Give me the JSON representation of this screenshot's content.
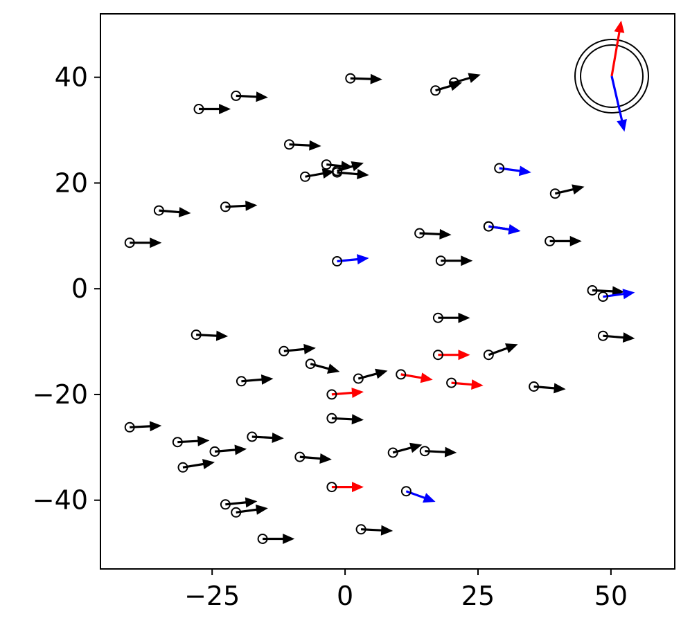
{
  "chart_data": {
    "type": "quiver",
    "title": "",
    "xlabel": "",
    "ylabel": "",
    "xlim": [
      -46,
      62
    ],
    "ylim": [
      -53,
      52
    ],
    "x_ticks": [
      -25,
      0,
      25,
      50
    ],
    "y_ticks": [
      -40,
      -20,
      0,
      20,
      40
    ],
    "x_tick_labels": [
      "−25",
      "0",
      "25",
      "50"
    ],
    "y_tick_labels": [
      "−40",
      "−20",
      "0",
      "20",
      "40"
    ],
    "grid": false,
    "legend": "none",
    "colors": {
      "default": "#000000",
      "red": "#ff0000",
      "blue": "#0000ff"
    },
    "vectors": [
      {
        "x": 1,
        "y": 39.8,
        "dx": 6,
        "dy": -0.2,
        "color": "black"
      },
      {
        "x": 17,
        "y": 37.5,
        "dx": 5,
        "dy": 1.5,
        "color": "black"
      },
      {
        "x": 20.5,
        "y": 39,
        "dx": 5,
        "dy": 1.5,
        "color": "black"
      },
      {
        "x": -20.5,
        "y": 36.5,
        "dx": 6,
        "dy": -0.3,
        "color": "black"
      },
      {
        "x": -27.5,
        "y": 34,
        "dx": 6,
        "dy": 0,
        "color": "black"
      },
      {
        "x": -10.5,
        "y": 27.3,
        "dx": 6,
        "dy": -0.3,
        "color": "black"
      },
      {
        "x": -3.5,
        "y": 23.5,
        "dx": 5,
        "dy": -0.5,
        "color": "black"
      },
      {
        "x": -1.5,
        "y": 22.3,
        "dx": 5,
        "dy": 1.5,
        "color": "black"
      },
      {
        "x": -1.5,
        "y": 22,
        "dx": 6,
        "dy": -0.5,
        "color": "black"
      },
      {
        "x": -7.5,
        "y": 21.2,
        "dx": 5.5,
        "dy": 1,
        "color": "black"
      },
      {
        "x": 29,
        "y": 22.8,
        "dx": 6,
        "dy": -0.8,
        "color": "blue"
      },
      {
        "x": 39.5,
        "y": 18,
        "dx": 5.5,
        "dy": 1.3,
        "color": "black"
      },
      {
        "x": -22.5,
        "y": 15.5,
        "dx": 6,
        "dy": 0.3,
        "color": "black"
      },
      {
        "x": -35,
        "y": 14.8,
        "dx": 6,
        "dy": -0.5,
        "color": "black"
      },
      {
        "x": 14,
        "y": 10.5,
        "dx": 6,
        "dy": -0.3,
        "color": "black"
      },
      {
        "x": 27,
        "y": 11.8,
        "dx": 6,
        "dy": -0.9,
        "color": "black"
      },
      {
        "x": 27,
        "y": 11.8,
        "dx": 6,
        "dy": -0.9,
        "color": "blue"
      },
      {
        "x": 38.5,
        "y": 9,
        "dx": 6,
        "dy": 0,
        "color": "black"
      },
      {
        "x": -40.5,
        "y": 8.7,
        "dx": 6,
        "dy": 0,
        "color": "black"
      },
      {
        "x": -1.5,
        "y": 5.2,
        "dx": 6,
        "dy": 0.6,
        "color": "blue"
      },
      {
        "x": 18,
        "y": 5.3,
        "dx": 6,
        "dy": 0,
        "color": "black"
      },
      {
        "x": 46.5,
        "y": -0.3,
        "dx": 6,
        "dy": -0.3,
        "color": "black"
      },
      {
        "x": 48.5,
        "y": -1.5,
        "dx": 6,
        "dy": 0.8,
        "color": "blue"
      },
      {
        "x": 17.5,
        "y": -5.5,
        "dx": 6,
        "dy": 0,
        "color": "black"
      },
      {
        "x": -28,
        "y": -8.7,
        "dx": 6,
        "dy": -0.3,
        "color": "black"
      },
      {
        "x": 48.5,
        "y": -8.9,
        "dx": 6,
        "dy": -0.5,
        "color": "black"
      },
      {
        "x": -11.5,
        "y": -11.8,
        "dx": 6,
        "dy": 0.6,
        "color": "black"
      },
      {
        "x": -6.5,
        "y": -14.2,
        "dx": 5.5,
        "dy": -1.5,
        "color": "black"
      },
      {
        "x": 17.5,
        "y": -12.5,
        "dx": 6,
        "dy": 0,
        "color": "red"
      },
      {
        "x": 27,
        "y": -12.5,
        "dx": 5.5,
        "dy": 2,
        "color": "black"
      },
      {
        "x": 2.5,
        "y": -17,
        "dx": 5.5,
        "dy": 1.5,
        "color": "black"
      },
      {
        "x": 10.5,
        "y": -16.2,
        "dx": 6,
        "dy": -1,
        "color": "red"
      },
      {
        "x": 20,
        "y": -17.8,
        "dx": 6,
        "dy": -0.5,
        "color": "red"
      },
      {
        "x": -19.5,
        "y": -17.5,
        "dx": 6,
        "dy": 0.5,
        "color": "black"
      },
      {
        "x": 35.5,
        "y": -18.5,
        "dx": 6,
        "dy": -0.5,
        "color": "black"
      },
      {
        "x": -2.5,
        "y": -20,
        "dx": 6,
        "dy": 0.5,
        "color": "red"
      },
      {
        "x": -2.5,
        "y": -24.5,
        "dx": 6,
        "dy": -0.3,
        "color": "black"
      },
      {
        "x": -40.5,
        "y": -26.2,
        "dx": 6,
        "dy": 0.3,
        "color": "black"
      },
      {
        "x": -17.5,
        "y": -28,
        "dx": 6,
        "dy": -0.3,
        "color": "black"
      },
      {
        "x": -31.5,
        "y": -29,
        "dx": 6,
        "dy": 0.3,
        "color": "black"
      },
      {
        "x": -24.5,
        "y": -30.8,
        "dx": 6,
        "dy": 0.5,
        "color": "black"
      },
      {
        "x": 9,
        "y": -31,
        "dx": 5.5,
        "dy": 1.5,
        "color": "black"
      },
      {
        "x": 15,
        "y": -30.7,
        "dx": 6,
        "dy": -0.3,
        "color": "black"
      },
      {
        "x": -8.5,
        "y": -31.8,
        "dx": 6,
        "dy": -0.5,
        "color": "black"
      },
      {
        "x": -30.5,
        "y": -33.8,
        "dx": 6,
        "dy": 1,
        "color": "black"
      },
      {
        "x": -2.5,
        "y": -37.5,
        "dx": 6,
        "dy": 0,
        "color": "red"
      },
      {
        "x": 11.5,
        "y": -38.3,
        "dx": 5.5,
        "dy": -2,
        "color": "blue"
      },
      {
        "x": -22.5,
        "y": -40.8,
        "dx": 6,
        "dy": 0.6,
        "color": "black"
      },
      {
        "x": -20.5,
        "y": -42.3,
        "dx": 6,
        "dy": 0.8,
        "color": "black"
      },
      {
        "x": 3,
        "y": -45.5,
        "dx": 6,
        "dy": -0.3,
        "color": "black"
      },
      {
        "x": -15.5,
        "y": -47.3,
        "dx": 6,
        "dy": 0,
        "color": "black"
      }
    ],
    "compass": {
      "arrows": [
        {
          "dx": 0.6,
          "dy": 3.5,
          "color": "red"
        },
        {
          "dx": 0.8,
          "dy": -3.5,
          "color": "blue"
        }
      ]
    }
  }
}
